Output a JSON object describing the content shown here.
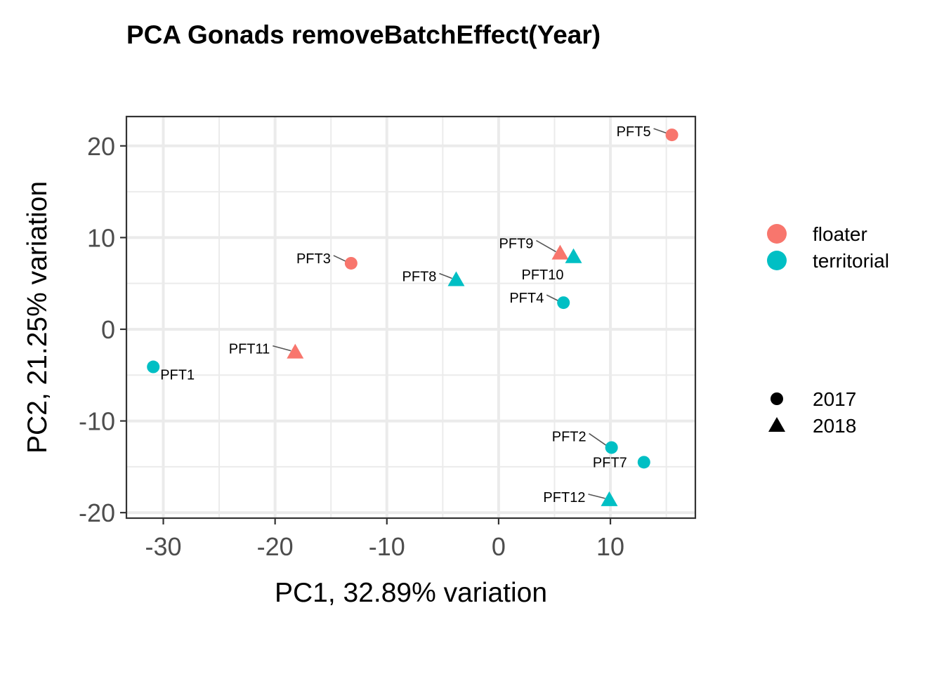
{
  "chart_data": {
    "type": "scatter",
    "title": "PCA Gonads removeBatchEffect(Year)",
    "xlabel": "PC1, 32.89% variation",
    "ylabel": "PC2, 21.25% variation",
    "xlim": [
      -33.3,
      17.6
    ],
    "ylim": [
      -20.6,
      23.2
    ],
    "xticks": [
      -30,
      -20,
      -10,
      0,
      10
    ],
    "yticks": [
      20,
      10,
      0,
      -10,
      -20
    ],
    "xtick_labels": [
      "-30",
      "-20",
      "-10",
      "0",
      "10"
    ],
    "ytick_labels": [
      "20",
      "10",
      "0",
      "-10",
      "-20"
    ],
    "grid": true,
    "legend_position": "right",
    "color_legend": [
      {
        "name": "floater",
        "color": "#F8766D"
      },
      {
        "name": "territorial",
        "color": "#00BFC4"
      }
    ],
    "shape_legend": [
      {
        "name": "2017",
        "shape": "circle"
      },
      {
        "name": "2018",
        "shape": "triangle"
      }
    ],
    "points": [
      {
        "label": "PFT5",
        "x": 15.5,
        "y": 21.2,
        "group": "floater",
        "year": "2017"
      },
      {
        "label": "PFT9",
        "x": 5.5,
        "y": 8.3,
        "group": "floater",
        "year": "2018"
      },
      {
        "label": "PFT10",
        "x": 6.7,
        "y": 7.9,
        "group": "territorial",
        "year": "2018"
      },
      {
        "label": "PFT3",
        "x": -13.2,
        "y": 7.2,
        "group": "floater",
        "year": "2017"
      },
      {
        "label": "PFT8",
        "x": -3.8,
        "y": 5.4,
        "group": "territorial",
        "year": "2018"
      },
      {
        "label": "PFT4",
        "x": 5.8,
        "y": 2.9,
        "group": "territorial",
        "year": "2017"
      },
      {
        "label": "PFT11",
        "x": -18.2,
        "y": -2.5,
        "group": "floater",
        "year": "2018"
      },
      {
        "label": "PFT1",
        "x": -30.9,
        "y": -4.1,
        "group": "territorial",
        "year": "2017"
      },
      {
        "label": "PFT2",
        "x": 10.1,
        "y": -12.9,
        "group": "territorial",
        "year": "2017"
      },
      {
        "label": "PFT7",
        "x": 13.0,
        "y": -14.5,
        "group": "territorial",
        "year": "2017"
      },
      {
        "label": "PFT12",
        "x": 9.9,
        "y": -18.6,
        "group": "territorial",
        "year": "2018"
      }
    ]
  }
}
